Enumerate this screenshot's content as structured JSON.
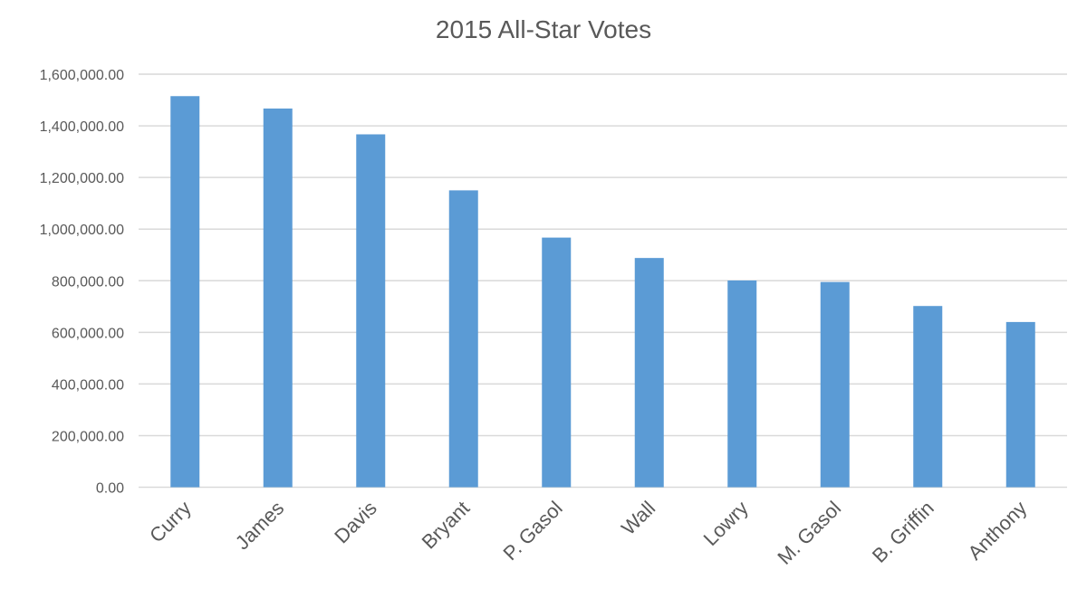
{
  "chart_data": {
    "type": "bar",
    "title": "2015 All-Star Votes",
    "xlabel": "",
    "ylabel": "",
    "categories": [
      "Curry",
      "James",
      "Davis",
      "Bryant",
      "P. Gasol",
      "Wall",
      "Lowry",
      "M. Gasol",
      "B. Griffin",
      "Anthony"
    ],
    "values": [
      1515000,
      1467000,
      1367000,
      1150000,
      967000,
      888000,
      801000,
      795000,
      702000,
      640000
    ],
    "ylim": [
      0,
      1600000
    ],
    "yticks": [
      0,
      200000,
      400000,
      600000,
      800000,
      1000000,
      1200000,
      1400000,
      1600000
    ],
    "ytick_labels": [
      "0.00",
      "200,000.00",
      "400,000.00",
      "600,000.00",
      "800,000.00",
      "1,000,000.00",
      "1,200,000.00",
      "1,400,000.00",
      "1,600,000.00"
    ],
    "grid": true,
    "legend": "none",
    "bar_color": "#5b9bd5"
  }
}
